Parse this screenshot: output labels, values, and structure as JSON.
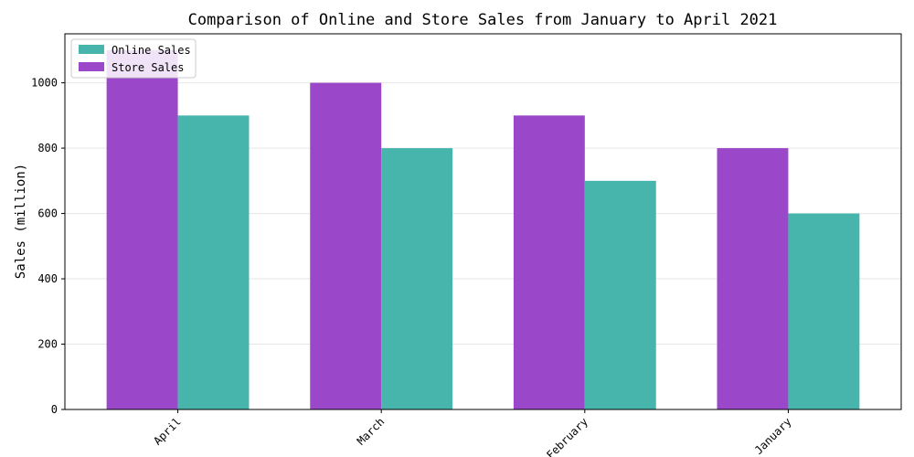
{
  "chart_data": {
    "type": "bar",
    "title": "Comparison of Online and Store Sales from January to April 2021",
    "xlabel": "",
    "ylabel": "Sales (million)",
    "categories": [
      "April",
      "March",
      "February",
      "January"
    ],
    "series": [
      {
        "name": "Store Sales",
        "values": [
          1100,
          1000,
          900,
          800
        ],
        "color": "#9b47c9"
      },
      {
        "name": "Online Sales",
        "values": [
          900,
          800,
          700,
          600
        ],
        "color": "#48b5ad"
      }
    ],
    "ylim": [
      0,
      1150
    ],
    "yticks": [
      "0",
      "200",
      "400",
      "600",
      "800",
      "1000"
    ],
    "grid": true,
    "legend": {
      "placement": "top-left",
      "entries": [
        {
          "label": "Online Sales",
          "color": "#48b5ad"
        },
        {
          "label": "Store Sales",
          "color": "#9b47c9"
        }
      ]
    }
  }
}
